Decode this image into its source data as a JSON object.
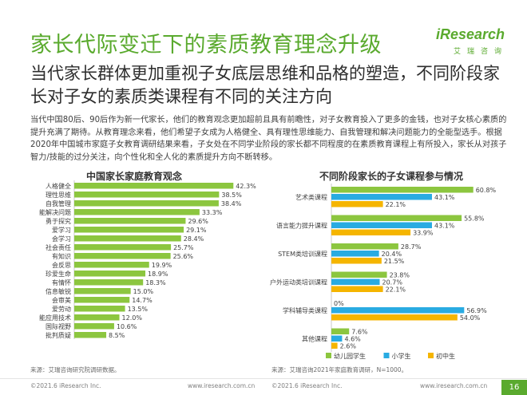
{
  "header": {
    "title": "家长代际变迁下的素质教育理念升级",
    "logo_text": "iResearch",
    "logo_sub": "艾瑞咨询"
  },
  "subtitle": "当代家长群体更加重视子女底层思维和品格的塑造，不同阶段家长对子女的素质类课程有不同的关注方向",
  "intro": "当代中国80后、90后作为新一代家长，他们的教育观念更加超前且具有前瞻性，对子女教育投入了更多的金钱，也对子女核心素质的提升充满了期待。从教育理念来看，他们希望子女成为人格健全、具有理性思维能力、自我管理和解决问题能力的全能型选手。根据2020年中国城市家庭子女教育调研结果来看，子女处在不同学业阶段的家长都不同程度的在素质教育课程上有所投入，家长从对孩子智力/技能的过分关注，向个性化和全人化的素质提升方向不断转移。",
  "left_chart": {
    "source": "来源：艾瑞咨询研究院调研数据。"
  },
  "right_chart": {
    "source": "来源：艾瑞咨询2021年家庭教育调研，N=1000。"
  },
  "footer": {
    "left_copyright": "©2021.6 iResearch Inc.",
    "left_url": "www.iresearch.com.cn",
    "right_copyright": "©2021.6 iResearch Inc.",
    "right_url": "www.iresearch.com.cn",
    "page_number": "16"
  },
  "colors": {
    "brand_green": "#5aaa2e",
    "bar_green": "#8cc63f",
    "bar_blue": "#29abe2",
    "bar_yellow": "#f5b500"
  },
  "chart_data": [
    {
      "type": "bar",
      "orientation": "horizontal",
      "title": "中国家长家庭教育观念",
      "categories": [
        "人格健全",
        "理性思维",
        "自我管理",
        "能解决问题",
        "勇于探究",
        "爱学习",
        "会学习",
        "社会责任",
        "有知识",
        "会反思",
        "珍爱生命",
        "有情怀",
        "信息敏锐",
        "会审美",
        "爱劳动",
        "能应用技术",
        "国际视野",
        "批判质疑"
      ],
      "values": [
        42.3,
        38.5,
        38.4,
        33.3,
        29.6,
        29.1,
        28.4,
        25.7,
        25.6,
        19.9,
        18.9,
        18.3,
        15.0,
        14.7,
        13.5,
        12.0,
        10.6,
        8.5
      ],
      "value_labels": [
        "42.3%",
        "38.5%",
        "38.4%",
        "33.3%",
        "29.6%",
        "29.1%",
        "28.4%",
        "25.7%",
        "25.6%",
        "19.9%",
        "18.9%",
        "18.3%",
        "15.0%",
        "14.7%",
        "13.5%",
        "12.0%",
        "10.6%",
        "8.5%"
      ],
      "xlim": [
        0,
        45
      ]
    },
    {
      "type": "bar",
      "orientation": "horizontal",
      "title": "不同阶段家长的子女课程参与情况",
      "categories": [
        "艺术类课程",
        "语言能力提升课程",
        "STEM类培训课程",
        "户外运动类培训课程",
        "学科辅导类课程",
        "其他课程"
      ],
      "series": [
        {
          "name": "幼儿园学生",
          "color": "#8cc63f",
          "values": [
            60.8,
            55.8,
            28.7,
            23.8,
            0.0,
            7.6
          ],
          "labels": [
            "60.8%",
            "55.8%",
            "28.7%",
            "23.8%",
            "0%",
            "7.6%"
          ]
        },
        {
          "name": "小学生",
          "color": "#29abe2",
          "values": [
            43.1,
            43.1,
            20.4,
            20.7,
            56.9,
            4.6
          ],
          "labels": [
            "43.1%",
            "43.1%",
            "20.4%",
            "20.7%",
            "56.9%",
            "4.6%"
          ]
        },
        {
          "name": "初中生",
          "color": "#f5b500",
          "values": [
            22.1,
            33.9,
            21.5,
            22.1,
            54.0,
            2.6
          ],
          "labels": [
            "22.1%",
            "33.9%",
            "21.5%",
            "22.1%",
            "54.0%",
            "2.6%"
          ]
        }
      ],
      "xlim": [
        0,
        65
      ],
      "legend": "bottom"
    }
  ]
}
